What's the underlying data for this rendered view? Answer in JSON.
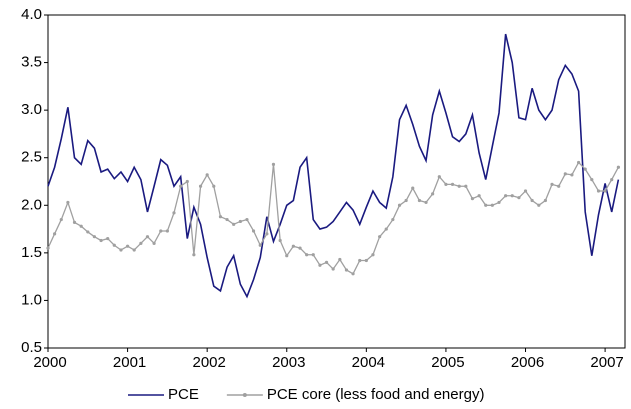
{
  "chart_data": {
    "type": "line",
    "x": [
      2000.0,
      2000.083,
      2000.167,
      2000.25,
      2000.333,
      2000.417,
      2000.5,
      2000.583,
      2000.667,
      2000.75,
      2000.833,
      2000.917,
      2001.0,
      2001.083,
      2001.167,
      2001.25,
      2001.333,
      2001.417,
      2001.5,
      2001.583,
      2001.667,
      2001.75,
      2001.833,
      2001.917,
      2002.0,
      2002.083,
      2002.167,
      2002.25,
      2002.333,
      2002.417,
      2002.5,
      2002.583,
      2002.667,
      2002.75,
      2002.833,
      2002.917,
      2003.0,
      2003.083,
      2003.167,
      2003.25,
      2003.333,
      2003.417,
      2003.5,
      2003.583,
      2003.667,
      2003.75,
      2003.833,
      2003.917,
      2004.0,
      2004.083,
      2004.167,
      2004.25,
      2004.333,
      2004.417,
      2004.5,
      2004.583,
      2004.667,
      2004.75,
      2004.833,
      2004.917,
      2005.0,
      2005.083,
      2005.167,
      2005.25,
      2005.333,
      2005.417,
      2005.5,
      2005.583,
      2005.667,
      2005.75,
      2005.833,
      2005.917,
      2006.0,
      2006.083,
      2006.167,
      2006.25,
      2006.333,
      2006.417,
      2006.5,
      2006.583,
      2006.667,
      2006.75,
      2006.833,
      2006.917,
      2007.0,
      2007.083,
      2007.167
    ],
    "series": [
      {
        "name": "PCE",
        "color": "#1a1a80",
        "markers": false,
        "values": [
          2.2,
          2.4,
          2.7,
          3.03,
          2.5,
          2.43,
          2.68,
          2.6,
          2.35,
          2.38,
          2.28,
          2.35,
          2.25,
          2.4,
          2.27,
          1.93,
          2.2,
          2.48,
          2.42,
          2.2,
          2.3,
          1.65,
          1.98,
          1.8,
          1.45,
          1.15,
          1.1,
          1.35,
          1.47,
          1.17,
          1.04,
          1.22,
          1.45,
          1.88,
          1.62,
          1.8,
          2.0,
          2.05,
          2.4,
          2.5,
          1.85,
          1.75,
          1.77,
          1.83,
          1.93,
          2.03,
          1.95,
          1.8,
          1.98,
          2.15,
          2.03,
          1.97,
          2.3,
          2.9,
          3.05,
          2.85,
          2.62,
          2.47,
          2.95,
          3.2,
          2.97,
          2.72,
          2.67,
          2.75,
          2.95,
          2.55,
          2.27,
          2.62,
          2.97,
          3.8,
          3.5,
          2.92,
          2.9,
          3.23,
          3.0,
          2.9,
          3.0,
          3.32,
          3.47,
          3.38,
          3.2,
          1.93,
          1.47,
          1.9,
          2.23,
          1.93,
          2.27
        ]
      },
      {
        "name": "PCE core (less food and energy)",
        "color": "#a0a0a0",
        "markers": true,
        "values": [
          1.55,
          1.7,
          1.85,
          2.03,
          1.82,
          1.78,
          1.72,
          1.67,
          1.63,
          1.65,
          1.58,
          1.53,
          1.57,
          1.53,
          1.6,
          1.67,
          1.6,
          1.73,
          1.73,
          1.92,
          2.2,
          2.25,
          1.48,
          2.2,
          2.32,
          2.2,
          1.88,
          1.85,
          1.8,
          1.83,
          1.85,
          1.73,
          1.58,
          1.7,
          2.43,
          1.63,
          1.47,
          1.57,
          1.55,
          1.48,
          1.48,
          1.37,
          1.4,
          1.33,
          1.43,
          1.32,
          1.28,
          1.42,
          1.42,
          1.48,
          1.67,
          1.75,
          1.85,
          2.0,
          2.05,
          2.18,
          2.05,
          2.03,
          2.12,
          2.3,
          2.22,
          2.22,
          2.2,
          2.2,
          2.07,
          2.1,
          2.0,
          2.0,
          2.03,
          2.1,
          2.1,
          2.08,
          2.15,
          2.05,
          2.0,
          2.05,
          2.22,
          2.2,
          2.33,
          2.32,
          2.45,
          2.38,
          2.27,
          2.15,
          2.15,
          2.27,
          2.4
        ]
      }
    ],
    "xlim": [
      2000,
      2007.25
    ],
    "xticks": [
      2000,
      2001,
      2002,
      2003,
      2004,
      2005,
      2006,
      2007
    ],
    "ylim": [
      0.5,
      4.0
    ],
    "yticks": [
      0.5,
      {
        "value": 1,
        "label": "1.0"
      },
      1.5,
      {
        "value": 2,
        "label": "2.0"
      },
      2.5,
      {
        "value": 3,
        "label": "3.0"
      },
      3.5,
      {
        "value": 4,
        "label": "4.0"
      }
    ],
    "grid": false,
    "legend": "bottom"
  }
}
